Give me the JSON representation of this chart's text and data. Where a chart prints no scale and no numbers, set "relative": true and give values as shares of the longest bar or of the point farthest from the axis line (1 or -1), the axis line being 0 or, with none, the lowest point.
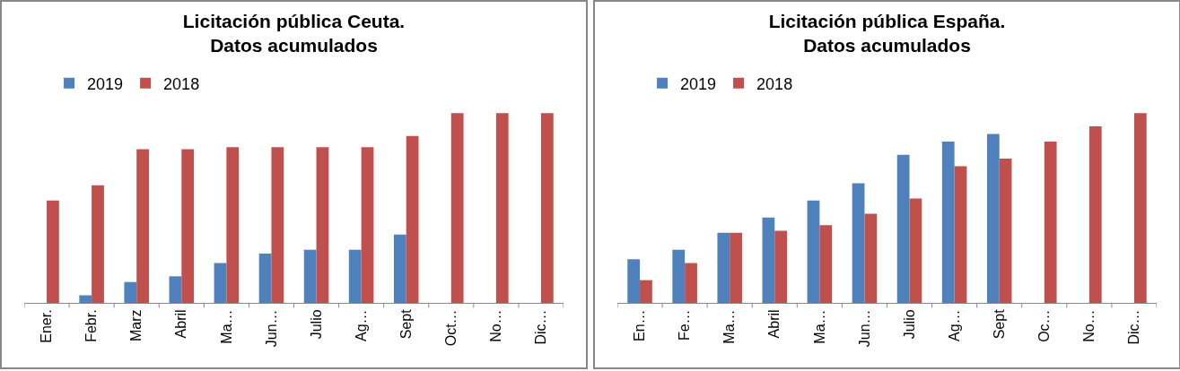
{
  "chart_data": [
    {
      "type": "bar",
      "title": "Licitación pública Ceuta. Datos acumulados",
      "relative": true,
      "legend": "top left",
      "categories": [
        "Ener.",
        "Febr.",
        "Marz",
        "Abril",
        "Ma…",
        "Jun…",
        "Julio",
        "Ag…",
        "Sept",
        "Oct…",
        "No…",
        "Dic…"
      ],
      "series": [
        {
          "name": "2019",
          "color": "#4f81bd",
          "values": [
            null,
            0.04,
            0.11,
            0.14,
            0.21,
            0.26,
            0.28,
            0.28,
            0.36,
            null,
            null,
            null
          ]
        },
        {
          "name": "2018",
          "color": "#c0504d",
          "values": [
            0.54,
            0.62,
            0.81,
            0.81,
            0.82,
            0.82,
            0.82,
            0.82,
            0.88,
            1,
            1,
            1
          ]
        }
      ]
    },
    {
      "type": "bar",
      "title": "Licitación pública España. Datos acumulados",
      "relative": true,
      "legend": "top left",
      "categories": [
        "En…",
        "Fe…",
        "Ma…",
        "Abril",
        "Ma…",
        "Jun…",
        "Julio",
        "Ag…",
        "Sept",
        "Oc…",
        "No…",
        "Dic…"
      ],
      "series": [
        {
          "name": "2019",
          "color": "#4f81bd",
          "values": [
            0.23,
            0.28,
            0.37,
            0.45,
            0.54,
            0.63,
            0.78,
            0.85,
            0.89,
            null,
            null,
            null
          ]
        },
        {
          "name": "2018",
          "color": "#c0504d",
          "values": [
            0.12,
            0.21,
            0.37,
            0.38,
            0.41,
            0.47,
            0.55,
            0.72,
            0.76,
            0.85,
            0.93,
            1
          ]
        }
      ]
    }
  ]
}
